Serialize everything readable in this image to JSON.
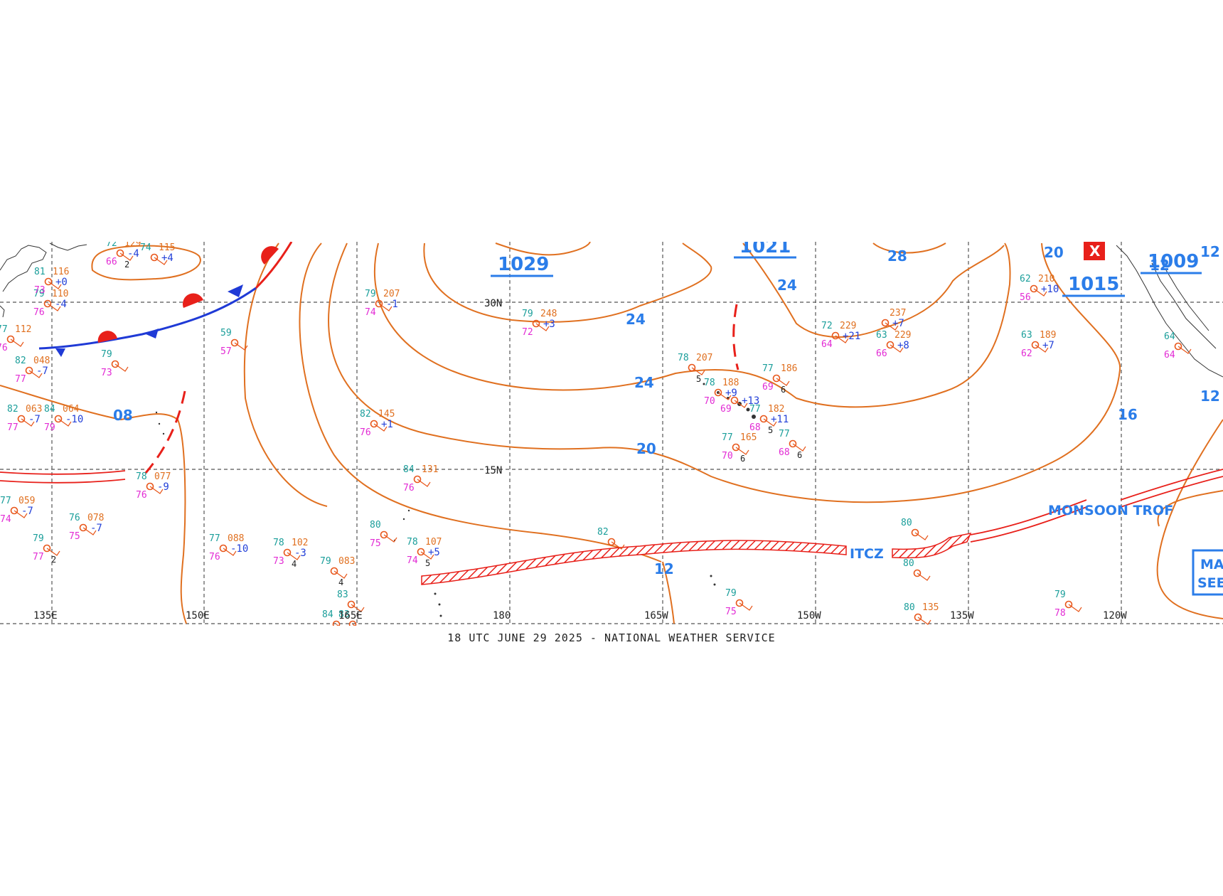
{
  "footer": "18 UTC JUNE 29 2025 - NATIONAL WEATHER SERVICE",
  "longitudes": [
    "135E",
    "150E",
    "165E",
    "180",
    "165W",
    "150W",
    "135W",
    "120W"
  ],
  "latitudes": [
    "30N",
    "15N"
  ],
  "pressure_centers": [
    {
      "value": "1029",
      "kind": "high"
    },
    {
      "value": "1021",
      "kind": "high"
    },
    {
      "value": "1015",
      "kind": "high"
    },
    {
      "value": "1009",
      "kind": "low"
    }
  ],
  "isobar_labels": [
    "24",
    "24",
    "24",
    "28",
    "24",
    "20",
    "20",
    "16",
    "12",
    "12",
    "12",
    "08",
    "12"
  ],
  "features": {
    "itcz": "ITCZ",
    "monsoon": "MONSOON TROF",
    "box_line1": "MA",
    "box_line2": "SEE"
  },
  "stations": [
    {
      "t": "79",
      "p": "207",
      "d": "74",
      "tend": "-1"
    },
    {
      "t": "79",
      "p": "248",
      "d": "72",
      "tend": "+3"
    },
    {
      "t": "78",
      "p": "207",
      "d": "",
      "tend": "",
      "v": "5"
    },
    {
      "t": "77",
      "p": "186",
      "d": "69",
      "tend": "",
      "v": "6"
    },
    {
      "t": "78",
      "p": "188",
      "d": "70",
      "tend": "+9"
    },
    {
      "t": "",
      "p": "",
      "d": "69",
      "tend": "+13"
    },
    {
      "t": "77",
      "p": "182",
      "d": "68",
      "tend": "+11",
      "v": "5"
    },
    {
      "t": "77",
      "p": "165",
      "d": "70",
      "tend": "",
      "v": "6"
    },
    {
      "t": "77",
      "p": "",
      "d": "68",
      "tend": "",
      "v": "6"
    },
    {
      "t": "72",
      "p": "229",
      "d": "64",
      "tend": "+21"
    },
    {
      "t": "",
      "p": "237",
      "d": "",
      "tend": "+7"
    },
    {
      "t": "63",
      "p": "229",
      "d": "66",
      "tend": "+8"
    },
    {
      "t": "62",
      "p": "210",
      "d": "56",
      "tend": "+10"
    },
    {
      "t": "63",
      "p": "189",
      "d": "62",
      "tend": "+7"
    },
    {
      "t": "82",
      "p": "145",
      "d": "76",
      "tend": "+1"
    },
    {
      "t": "84",
      "p": "131",
      "d": "76",
      "tend": ""
    },
    {
      "t": "77",
      "p": "088",
      "d": "76",
      "tend": "-10"
    },
    {
      "t": "78",
      "p": "102",
      "d": "73",
      "tend": "-3",
      "v": "4"
    },
    {
      "t": "79",
      "p": "083",
      "d": "",
      "tend": "",
      "v": "4"
    },
    {
      "t": "80",
      "p": "",
      "d": "75",
      "tend": ""
    },
    {
      "t": "78",
      "p": "107",
      "d": "74",
      "tend": "+5",
      "v": "5"
    },
    {
      "t": "82",
      "p": "",
      "d": "",
      "tend": ""
    },
    {
      "t": "80",
      "p": "",
      "d": "",
      "tend": ""
    },
    {
      "t": "80",
      "p": "",
      "d": "",
      "tend": ""
    },
    {
      "t": "79",
      "p": "",
      "d": "75",
      "tend": ""
    },
    {
      "t": "79",
      "p": "",
      "d": "78",
      "tend": ""
    },
    {
      "t": "80",
      "p": "135",
      "d": "",
      "tend": ""
    },
    {
      "t": "83",
      "p": "",
      "d": "",
      "tend": ""
    },
    {
      "t": "83",
      "p": "",
      "d": "",
      "tend": ""
    },
    {
      "t": "84",
      "p": "",
      "d": "",
      "tend": ""
    },
    {
      "t": "59",
      "p": "",
      "d": "57",
      "tend": ""
    },
    {
      "t": "79",
      "p": "",
      "d": "73",
      "tend": ""
    },
    {
      "t": "78",
      "p": "077",
      "d": "76",
      "tend": "-9"
    },
    {
      "t": "76",
      "p": "078",
      "d": "75",
      "tend": "-7"
    },
    {
      "t": "77",
      "p": "059",
      "d": "74",
      "tend": "-7"
    },
    {
      "t": "79",
      "p": "",
      "d": "77",
      "tend": "",
      "v": "2"
    },
    {
      "t": "82",
      "p": "048",
      "d": "77",
      "tend": "-7"
    },
    {
      "t": "82",
      "p": "063",
      "d": "77",
      "tend": "-7"
    },
    {
      "t": "84",
      "p": "064",
      "d": "79",
      "tend": "-10"
    },
    {
      "t": "79",
      "p": "110",
      "d": "76",
      "tend": "-4"
    },
    {
      "t": "81",
      "p": "116",
      "d": "73",
      "tend": "+0"
    },
    {
      "t": "77",
      "p": "112",
      "d": "76",
      "tend": ""
    },
    {
      "t": "72",
      "p": "129",
      "d": "66",
      "tend": "-4",
      "v": "2"
    },
    {
      "t": "74",
      "p": "115",
      "d": "",
      "tend": "+4"
    },
    {
      "t": "64",
      "p": "",
      "d": "64",
      "tend": ""
    }
  ],
  "colors": {
    "isobar": "#e07020",
    "label": "#2b7de9",
    "cold_front": "#1f3ad6",
    "warm_front": "#e8201a",
    "trough": "#e8201a",
    "temp": "#1a9e9a",
    "dew": "#e22ad4",
    "pressure": "#e07020",
    "tendency": "#2340d8"
  }
}
